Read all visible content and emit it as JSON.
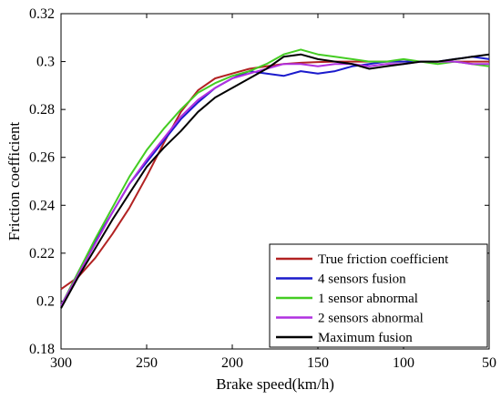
{
  "chart_data": {
    "type": "line",
    "title": "",
    "xlabel": "Brake speed(km/h)",
    "ylabel": "Friction coefficient",
    "xlim": [
      300,
      50
    ],
    "ylim": [
      0.18,
      0.32
    ],
    "x_reversed": true,
    "xticks": [
      "300",
      "250",
      "200",
      "150",
      "100",
      "50"
    ],
    "yticks": [
      "0.18",
      "0.2",
      "0.22",
      "0.24",
      "0.26",
      "0.28",
      "0.3",
      "0.32"
    ],
    "grid": false,
    "legend_position": "bottom-right",
    "series": [
      {
        "name": "True friction coefficient",
        "color": "#b22222",
        "x": [
          300,
          290,
          280,
          270,
          260,
          250,
          240,
          230,
          220,
          210,
          200,
          190,
          180,
          170,
          160,
          150,
          140,
          130,
          120,
          110,
          100,
          90,
          80,
          70,
          60,
          50
        ],
        "y": [
          0.205,
          0.21,
          0.218,
          0.228,
          0.239,
          0.252,
          0.266,
          0.279,
          0.288,
          0.293,
          0.295,
          0.297,
          0.298,
          0.299,
          0.2995,
          0.2998,
          0.3,
          0.3,
          0.3,
          0.3,
          0.3,
          0.3,
          0.3,
          0.3,
          0.3,
          0.3
        ]
      },
      {
        "name": "4 sensors fusion",
        "color": "#1a1acc",
        "x": [
          300,
          290,
          280,
          270,
          260,
          250,
          240,
          230,
          220,
          210,
          200,
          190,
          180,
          170,
          160,
          150,
          140,
          130,
          120,
          110,
          100,
          90,
          80,
          70,
          60,
          50
        ],
        "y": [
          0.198,
          0.212,
          0.225,
          0.237,
          0.249,
          0.258,
          0.267,
          0.276,
          0.283,
          0.289,
          0.293,
          0.296,
          0.295,
          0.294,
          0.296,
          0.295,
          0.296,
          0.298,
          0.299,
          0.3,
          0.3,
          0.3,
          0.3,
          0.301,
          0.302,
          0.301
        ]
      },
      {
        "name": "1 sensor abnormal",
        "color": "#44cc22",
        "x": [
          300,
          290,
          280,
          270,
          260,
          250,
          240,
          230,
          220,
          210,
          200,
          190,
          180,
          170,
          160,
          150,
          140,
          130,
          120,
          110,
          100,
          90,
          80,
          70,
          60,
          50
        ],
        "y": [
          0.198,
          0.212,
          0.226,
          0.239,
          0.252,
          0.263,
          0.272,
          0.28,
          0.287,
          0.291,
          0.294,
          0.296,
          0.299,
          0.303,
          0.305,
          0.303,
          0.302,
          0.301,
          0.3,
          0.3,
          0.301,
          0.3,
          0.299,
          0.3,
          0.299,
          0.298
        ]
      },
      {
        "name": "2 sensors abnormal",
        "color": "#b030e0",
        "x": [
          300,
          290,
          280,
          270,
          260,
          250,
          240,
          230,
          220,
          210,
          200,
          190,
          180,
          170,
          160,
          150,
          140,
          130,
          120,
          110,
          100,
          90,
          80,
          70,
          60,
          50
        ],
        "y": [
          0.198,
          0.211,
          0.224,
          0.237,
          0.249,
          0.259,
          0.268,
          0.277,
          0.284,
          0.289,
          0.293,
          0.295,
          0.297,
          0.299,
          0.299,
          0.298,
          0.299,
          0.299,
          0.298,
          0.299,
          0.299,
          0.3,
          0.3,
          0.3,
          0.299,
          0.299
        ]
      },
      {
        "name": "Maximum fusion",
        "color": "#000000",
        "x": [
          300,
          290,
          280,
          270,
          260,
          250,
          240,
          230,
          220,
          210,
          200,
          190,
          180,
          170,
          160,
          150,
          140,
          130,
          120,
          110,
          100,
          90,
          80,
          70,
          60,
          50
        ],
        "y": [
          0.197,
          0.21,
          0.222,
          0.234,
          0.245,
          0.256,
          0.264,
          0.271,
          0.279,
          0.285,
          0.289,
          0.293,
          0.297,
          0.302,
          0.303,
          0.301,
          0.3,
          0.299,
          0.297,
          0.298,
          0.299,
          0.3,
          0.3,
          0.301,
          0.302,
          0.303
        ]
      }
    ]
  }
}
